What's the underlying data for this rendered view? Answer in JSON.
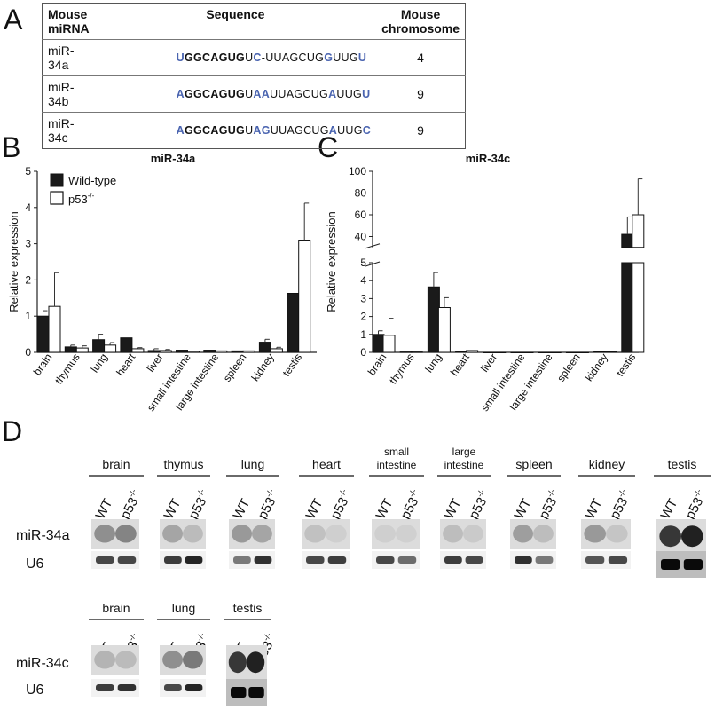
{
  "panel_labels": {
    "a": "A",
    "b": "B",
    "c": "C",
    "d": "D"
  },
  "table": {
    "headers": [
      "Mouse miRNA",
      "Sequence",
      "Mouse chromosome"
    ],
    "rows": [
      {
        "name": "miR-34a",
        "segments": [
          {
            "t": "U",
            "s": "blue"
          },
          {
            "t": "GGCAGUG",
            "s": "bold"
          },
          {
            "t": "U",
            "s": "plain"
          },
          {
            "t": "C",
            "s": "blue"
          },
          {
            "t": "-UUAGCUG",
            "s": "plain"
          },
          {
            "t": "G",
            "s": "blue"
          },
          {
            "t": "UUG",
            "s": "plain"
          },
          {
            "t": "U",
            "s": "blue"
          }
        ],
        "chromosome": "4"
      },
      {
        "name": "miR-34b",
        "segments": [
          {
            "t": "A",
            "s": "blue"
          },
          {
            "t": "GGCAGUG",
            "s": "bold"
          },
          {
            "t": "U",
            "s": "plain"
          },
          {
            "t": "AA",
            "s": "blue"
          },
          {
            "t": "UUAGCUG",
            "s": "plain"
          },
          {
            "t": "A",
            "s": "blue"
          },
          {
            "t": "UUG",
            "s": "plain"
          },
          {
            "t": "U",
            "s": "blue"
          }
        ],
        "chromosome": "9"
      },
      {
        "name": "miR-34c",
        "segments": [
          {
            "t": "A",
            "s": "blue"
          },
          {
            "t": "GGCAGUG",
            "s": "bold"
          },
          {
            "t": "U",
            "s": "plain"
          },
          {
            "t": "AG",
            "s": "blue"
          },
          {
            "t": "UUAGCUG",
            "s": "plain"
          },
          {
            "t": "A",
            "s": "blue"
          },
          {
            "t": "UUG",
            "s": "plain"
          },
          {
            "t": "C",
            "s": "blue"
          }
        ],
        "chromosome": "9"
      }
    ]
  },
  "chart_data": [
    {
      "type": "bar",
      "title": "miR-34a",
      "ylabel": "Relative expression",
      "categories": [
        "brain",
        "thymus",
        "lung",
        "heart",
        "liver",
        "small intestine",
        "large intestine",
        "spleen",
        "kidney",
        "testis"
      ],
      "ylim": [
        0,
        5
      ],
      "yticks": [
        "0",
        "1",
        "2",
        "3",
        "4",
        "5"
      ],
      "legend": [
        "Wild-type",
        "p53-/-"
      ],
      "series": [
        {
          "name": "Wild-type",
          "fill": "#1a1a1a",
          "values": [
            1.0,
            0.15,
            0.35,
            0.4,
            0.05,
            0.06,
            0.06,
            0.04,
            0.28,
            1.63
          ],
          "errors": [
            0.15,
            0.05,
            0.15,
            0.0,
            0.05,
            0.0,
            0.0,
            0.0,
            0.08,
            0.0
          ]
        },
        {
          "name": "p53-/-",
          "fill": "#ffffff",
          "values": [
            1.27,
            0.12,
            0.2,
            0.1,
            0.05,
            0.03,
            0.04,
            0.04,
            0.1,
            3.1
          ],
          "errors": [
            0.93,
            0.06,
            0.07,
            0.03,
            0.03,
            0.0,
            0.0,
            0.0,
            0.04,
            1.02
          ]
        }
      ]
    },
    {
      "type": "bar",
      "title": "miR-34c",
      "ylabel": "Relative expression",
      "categories": [
        "brain",
        "thymus",
        "lung",
        "heart",
        "liver",
        "small intestine",
        "large intestine",
        "spleen",
        "kidney",
        "testis"
      ],
      "broken_axis": {
        "lower": [
          0,
          5
        ],
        "upper": [
          20,
          100
        ]
      },
      "yticks_lower": [
        "0",
        "1",
        "2",
        "3",
        "4",
        "5"
      ],
      "yticks_upper": [
        "40",
        "60",
        "80",
        "100"
      ],
      "series": [
        {
          "name": "Wild-type",
          "fill": "#1a1a1a",
          "values": [
            1.0,
            0.02,
            3.65,
            0.05,
            0.0,
            0.0,
            0.0,
            0.0,
            0.05,
            42
          ],
          "errors": [
            0.2,
            0.0,
            0.8,
            0.0,
            0.0,
            0.0,
            0.0,
            0.0,
            0.0,
            16
          ]
        },
        {
          "name": "p53-/-",
          "fill": "#ffffff",
          "values": [
            0.95,
            0.02,
            2.5,
            0.1,
            0.0,
            0.0,
            0.0,
            0.0,
            0.05,
            60
          ],
          "errors": [
            0.95,
            0.0,
            0.55,
            0.0,
            0.0,
            0.0,
            0.0,
            0.0,
            0.0,
            33
          ]
        }
      ]
    }
  ],
  "blots": {
    "lane_labels": [
      "WT",
      "p53-/-"
    ],
    "row1_tissues": [
      "brain",
      "thymus",
      "lung",
      "heart",
      "small intestine",
      "large intestine",
      "spleen",
      "kidney",
      "testis"
    ],
    "row1_probes": [
      "miR-34a",
      "U6"
    ],
    "row2_tissues": [
      "brain",
      "lung",
      "testis"
    ],
    "row2_probes": [
      "miR-34c",
      "U6"
    ]
  }
}
